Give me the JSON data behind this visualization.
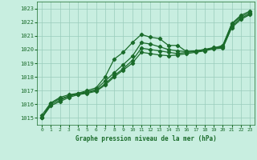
{
  "title": "Graphe pression niveau de la mer (hPa)",
  "bg_color": "#c8eee0",
  "grid_color": "#99ccbb",
  "line_color": "#1a6b2a",
  "xlim": [
    -0.5,
    23.5
  ],
  "ylim": [
    1014.5,
    1023.5
  ],
  "yticks": [
    1015,
    1016,
    1017,
    1018,
    1019,
    1020,
    1021,
    1022,
    1023
  ],
  "xticks": [
    0,
    1,
    2,
    3,
    4,
    5,
    6,
    7,
    8,
    9,
    10,
    11,
    12,
    13,
    14,
    15,
    16,
    17,
    18,
    19,
    20,
    21,
    22,
    23
  ],
  "series": [
    [
      1015.2,
      1016.1,
      1016.5,
      1016.7,
      1016.8,
      1017.0,
      1017.2,
      1018.0,
      1019.3,
      1019.8,
      1020.5,
      1021.1,
      1020.9,
      1020.8,
      1020.3,
      1020.3,
      1019.85,
      1019.9,
      1020.0,
      1020.1,
      1020.3,
      1021.9,
      1022.5,
      1022.8
    ],
    [
      1015.0,
      1016.1,
      1016.4,
      1016.6,
      1016.8,
      1016.9,
      1017.1,
      1017.7,
      1018.3,
      1018.9,
      1019.5,
      1020.5,
      1020.4,
      1020.2,
      1020.0,
      1019.9,
      1019.85,
      1019.9,
      1020.0,
      1020.15,
      1020.2,
      1021.85,
      1022.4,
      1022.7
    ],
    [
      1015.0,
      1016.0,
      1016.3,
      1016.6,
      1016.75,
      1016.85,
      1017.0,
      1017.5,
      1018.1,
      1018.6,
      1019.2,
      1020.1,
      1020.0,
      1019.9,
      1019.8,
      1019.7,
      1019.8,
      1019.85,
      1019.95,
      1020.1,
      1020.15,
      1021.7,
      1022.3,
      1022.6
    ],
    [
      1015.0,
      1015.9,
      1016.2,
      1016.5,
      1016.7,
      1016.8,
      1016.95,
      1017.4,
      1018.0,
      1018.5,
      1019.0,
      1019.8,
      1019.7,
      1019.6,
      1019.55,
      1019.6,
      1019.7,
      1019.8,
      1019.9,
      1020.05,
      1020.1,
      1021.6,
      1022.2,
      1022.55
    ]
  ]
}
